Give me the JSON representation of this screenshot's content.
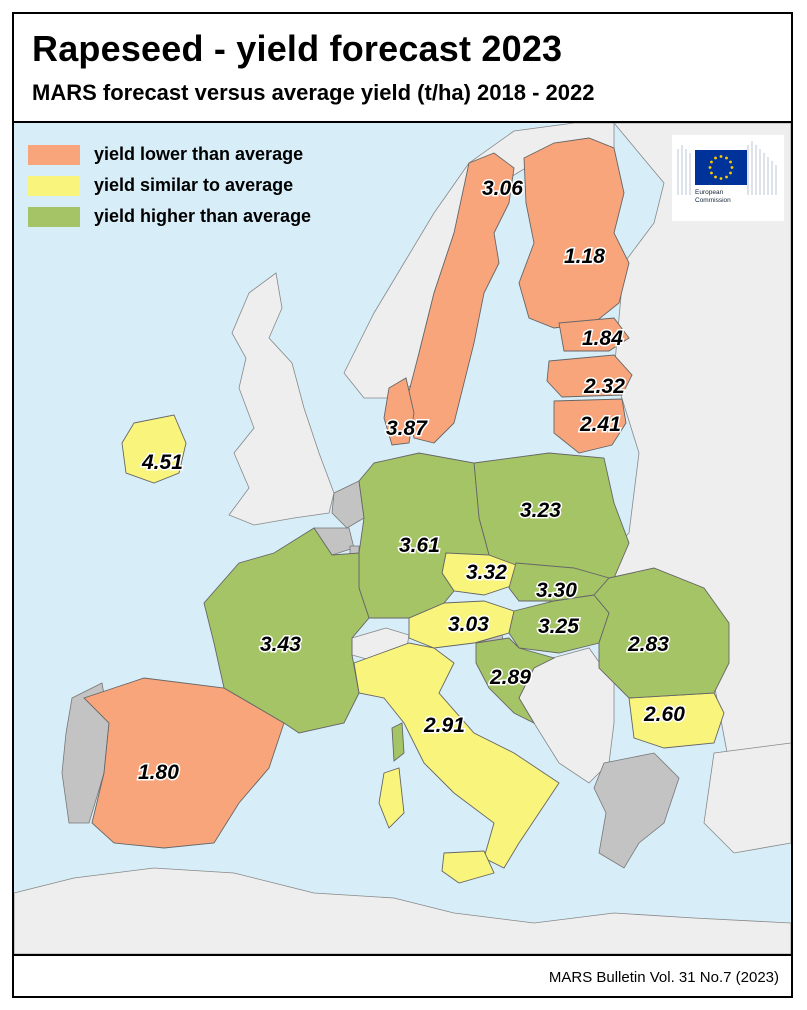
{
  "header": {
    "title": "Rapeseed - yield forecast 2023",
    "subtitle": "MARS forecast versus average yield (t/ha) 2018 - 2022"
  },
  "legend": {
    "items": [
      {
        "label": "yield lower than average",
        "color": "#f9a57c"
      },
      {
        "label": "yield similar to average",
        "color": "#f8f47c"
      },
      {
        "label": "yield higher than average",
        "color": "#a4c466"
      }
    ]
  },
  "logo": {
    "line1": "European",
    "line2": "Commission"
  },
  "colors": {
    "sea": "#d7eef8",
    "land_no_data": "#eeeeee",
    "land_excluded": "#c3c3c3",
    "lower": "#f9a57c",
    "similar": "#f8f47c",
    "higher": "#a4c466",
    "border": "#666666",
    "eu_blue": "#003399",
    "eu_star": "#ffcc00"
  },
  "countries": {
    "sweden": {
      "value": "3.06",
      "category": "lower"
    },
    "finland": {
      "value": "1.18",
      "category": "lower"
    },
    "estonia": {
      "value": "1.84",
      "category": "lower"
    },
    "latvia": {
      "value": "2.32",
      "category": "lower"
    },
    "lithuania": {
      "value": "2.41",
      "category": "lower"
    },
    "denmark": {
      "value": "3.87",
      "category": "lower"
    },
    "ireland": {
      "value": "4.51",
      "category": "similar"
    },
    "poland": {
      "value": "3.23",
      "category": "higher"
    },
    "germany": {
      "value": "3.61",
      "category": "higher"
    },
    "czechia": {
      "value": "3.32",
      "category": "similar"
    },
    "slovakia": {
      "value": "3.30",
      "category": "higher"
    },
    "austria": {
      "value": "3.03",
      "category": "similar"
    },
    "hungary": {
      "value": "3.25",
      "category": "higher"
    },
    "romania": {
      "value": "2.83",
      "category": "higher"
    },
    "france": {
      "value": "3.43",
      "category": "higher"
    },
    "croatia": {
      "value": "2.89",
      "category": "higher"
    },
    "bulgaria": {
      "value": "2.60",
      "category": "similar"
    },
    "italy": {
      "value": "2.91",
      "category": "similar"
    },
    "spain": {
      "value": "1.80",
      "category": "lower"
    }
  },
  "footer": {
    "source": "MARS Bulletin Vol. 31 No.7 (2023)"
  }
}
